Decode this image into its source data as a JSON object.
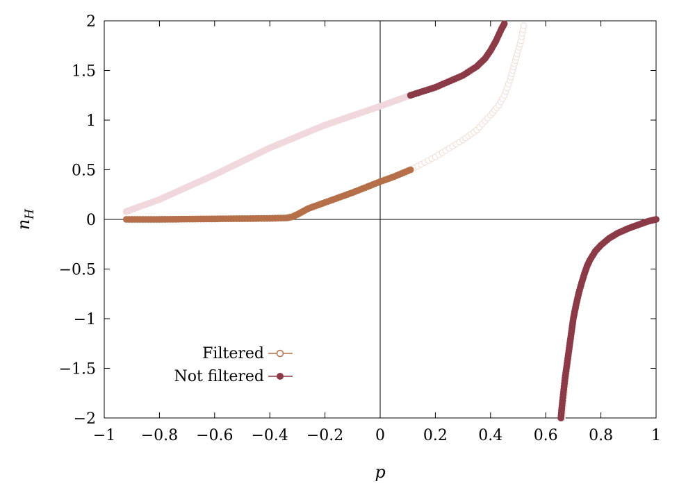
{
  "chart_data": {
    "type": "scatter",
    "title": "",
    "xlabel": "p",
    "ylabel": "n_H",
    "ylabel_main": "n",
    "ylabel_sub": "H",
    "xlim": [
      -1,
      1
    ],
    "ylim": [
      -2,
      2
    ],
    "xticks": [
      -1,
      -0.8,
      -0.6,
      -0.4,
      -0.2,
      0,
      0.2,
      0.4,
      0.6,
      0.8,
      1
    ],
    "xtick_labels": [
      "−1",
      "−0.8",
      "−0.6",
      "−0.4",
      "−0.2",
      "0",
      "0.2",
      "0.4",
      "0.6",
      "0.8",
      "1"
    ],
    "yticks": [
      -2,
      -1.5,
      -1,
      -0.5,
      0,
      0.5,
      1,
      1.5,
      2
    ],
    "ytick_labels": [
      "−2",
      "−1.5",
      "−1",
      "−0.5",
      "0",
      "0.5",
      "1",
      "1.5",
      "2"
    ],
    "grid": false,
    "zero_lines": true,
    "legend_position": "bottom-left",
    "legend": [
      {
        "label": "Filtered",
        "marker": "open-circle",
        "color": "#b5704a"
      },
      {
        "label": "Not filtered",
        "marker": "filled-circle",
        "color": "#8b3a47"
      }
    ],
    "colors": {
      "filtered": "#b5704a",
      "filtered_faded": "#efe1d9",
      "not_filtered": "#8b3a47",
      "not_filtered_faded": "#f0d8dd"
    },
    "series": [
      {
        "name": "Filtered",
        "style": "filled",
        "color": "#b5704a",
        "x": [
          -0.92,
          -0.8,
          -0.6,
          -0.4,
          -0.34,
          -0.32,
          -0.3,
          -0.28,
          -0.26,
          -0.2,
          -0.1,
          0,
          0.05,
          0.11
        ],
        "y": [
          0,
          0.0,
          0.005,
          0.01,
          0.015,
          0.025,
          0.05,
          0.08,
          0.11,
          0.17,
          0.27,
          0.38,
          0.43,
          0.5
        ]
      },
      {
        "name": "Filtered",
        "style": "faded-open",
        "color": "#efe1d9",
        "x": [
          0.11,
          0.2,
          0.3,
          0.35,
          0.4,
          0.43,
          0.45,
          0.47,
          0.48,
          0.49,
          0.5,
          0.51,
          0.52
        ],
        "y": [
          0.5,
          0.63,
          0.8,
          0.9,
          1.05,
          1.15,
          1.25,
          1.4,
          1.5,
          1.6,
          1.7,
          1.8,
          1.95
        ]
      },
      {
        "name": "Filtered",
        "style": "faded-open",
        "color": "#efe1d9",
        "x": [
          0.66,
          0.67,
          0.68,
          0.69,
          0.7,
          0.72,
          0.74
        ],
        "y": [
          -2.0,
          -1.7,
          -1.45,
          -1.2,
          -1.0,
          -0.75,
          -0.55
        ]
      },
      {
        "name": "Not filtered",
        "style": "faded-filled",
        "color": "#f0d8dd",
        "x": [
          -0.92,
          -0.8,
          -0.6,
          -0.4,
          -0.2,
          0,
          0.11
        ],
        "y": [
          0.08,
          0.2,
          0.45,
          0.72,
          0.95,
          1.14,
          1.25
        ]
      },
      {
        "name": "Not filtered",
        "style": "filled",
        "color": "#8b3a47",
        "x": [
          0.11,
          0.2,
          0.3,
          0.35,
          0.38,
          0.4,
          0.42,
          0.44,
          0.45
        ],
        "y": [
          1.25,
          1.33,
          1.45,
          1.54,
          1.62,
          1.7,
          1.8,
          1.92,
          1.97
        ]
      },
      {
        "name": "Not filtered",
        "style": "filled",
        "color": "#8b3a47",
        "x": [
          0.655,
          0.66,
          0.67,
          0.68,
          0.69,
          0.7,
          0.71,
          0.72,
          0.73,
          0.74,
          0.75,
          0.76,
          0.78,
          0.8,
          0.83,
          0.86,
          0.9,
          0.94,
          0.97,
          1.0
        ],
        "y": [
          -2.0,
          -1.85,
          -1.6,
          -1.4,
          -1.2,
          -1.0,
          -0.86,
          -0.74,
          -0.64,
          -0.55,
          -0.47,
          -0.41,
          -0.32,
          -0.26,
          -0.19,
          -0.14,
          -0.09,
          -0.05,
          -0.02,
          0
        ]
      }
    ]
  }
}
